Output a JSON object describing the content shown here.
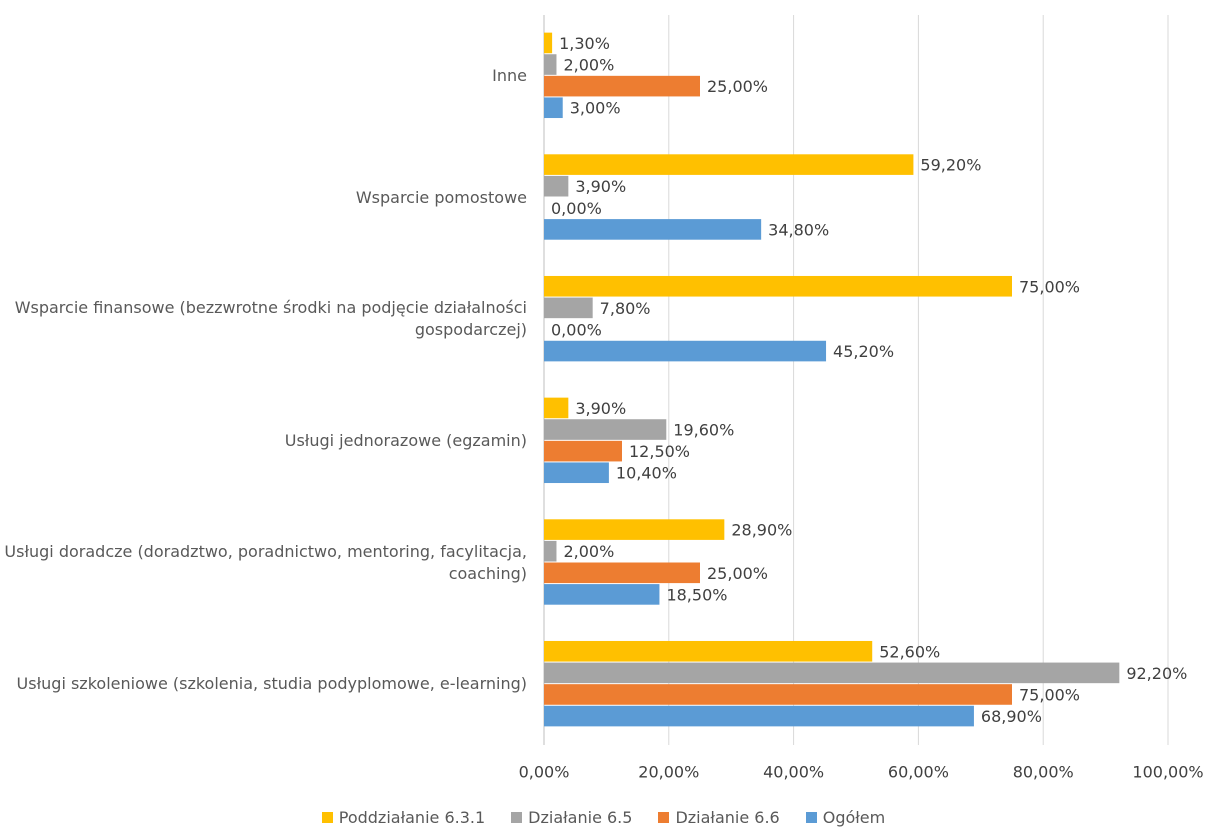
{
  "chart_data": {
    "type": "bar",
    "orientation": "horizontal",
    "categories": [
      "Inne",
      "Wsparcie pomostowe",
      "Wsparcie finansowe (bezzwrotne środki na podjęcie działalności gospodarczej)",
      "Usługi jednorazowe (egzamin)",
      "Usługi doradcze (doradztwo, poradnictwo, mentoring, facylitacja, coaching)",
      "Usługi szkoleniowe (szkolenia, studia podyplomowe, e-learning)"
    ],
    "series": [
      {
        "name": "Poddziałanie 6.3.1",
        "color": "#FFC000",
        "values": [
          1.3,
          59.2,
          75,
          3.9,
          28.9,
          52.6
        ],
        "value_labels": [
          "1,30%",
          "59,20%",
          "75,00%",
          "3,90%",
          "28,90%",
          "52,60%"
        ]
      },
      {
        "name": "Działanie 6.5",
        "color": "#A5A5A5",
        "values": [
          2,
          3.9,
          7.8,
          19.6,
          2,
          92.2
        ],
        "value_labels": [
          "2,00%",
          "3,90%",
          "7,80%",
          "19,60%",
          "2,00%",
          "92,20%"
        ]
      },
      {
        "name": "Działanie 6.6",
        "color": "#ED7D31",
        "values": [
          25,
          0,
          0,
          12.5,
          25,
          75
        ],
        "value_labels": [
          "25,00%",
          "0,00%",
          "0,00%",
          "12,50%",
          "25,00%",
          "75,00%"
        ]
      },
      {
        "name": "Ogółem",
        "color": "#5B9BD5",
        "values": [
          3,
          34.8,
          45.2,
          10.4,
          18.5,
          68.9
        ],
        "value_labels": [
          "3,00%",
          "34,80%",
          "45,20%",
          "10,40%",
          "18,50%",
          "68,90%"
        ]
      }
    ],
    "xlim": [
      0,
      100
    ],
    "xticks": [
      {
        "value": 0,
        "label": "0,00%"
      },
      {
        "value": 20,
        "label": "20,00%"
      },
      {
        "value": 40,
        "label": "40,00%"
      },
      {
        "value": 60,
        "label": "60,00%"
      },
      {
        "value": 80,
        "label": "80,00%"
      },
      {
        "value": 100,
        "label": "100,00%"
      }
    ],
    "grid": true,
    "legend": "bottom"
  }
}
